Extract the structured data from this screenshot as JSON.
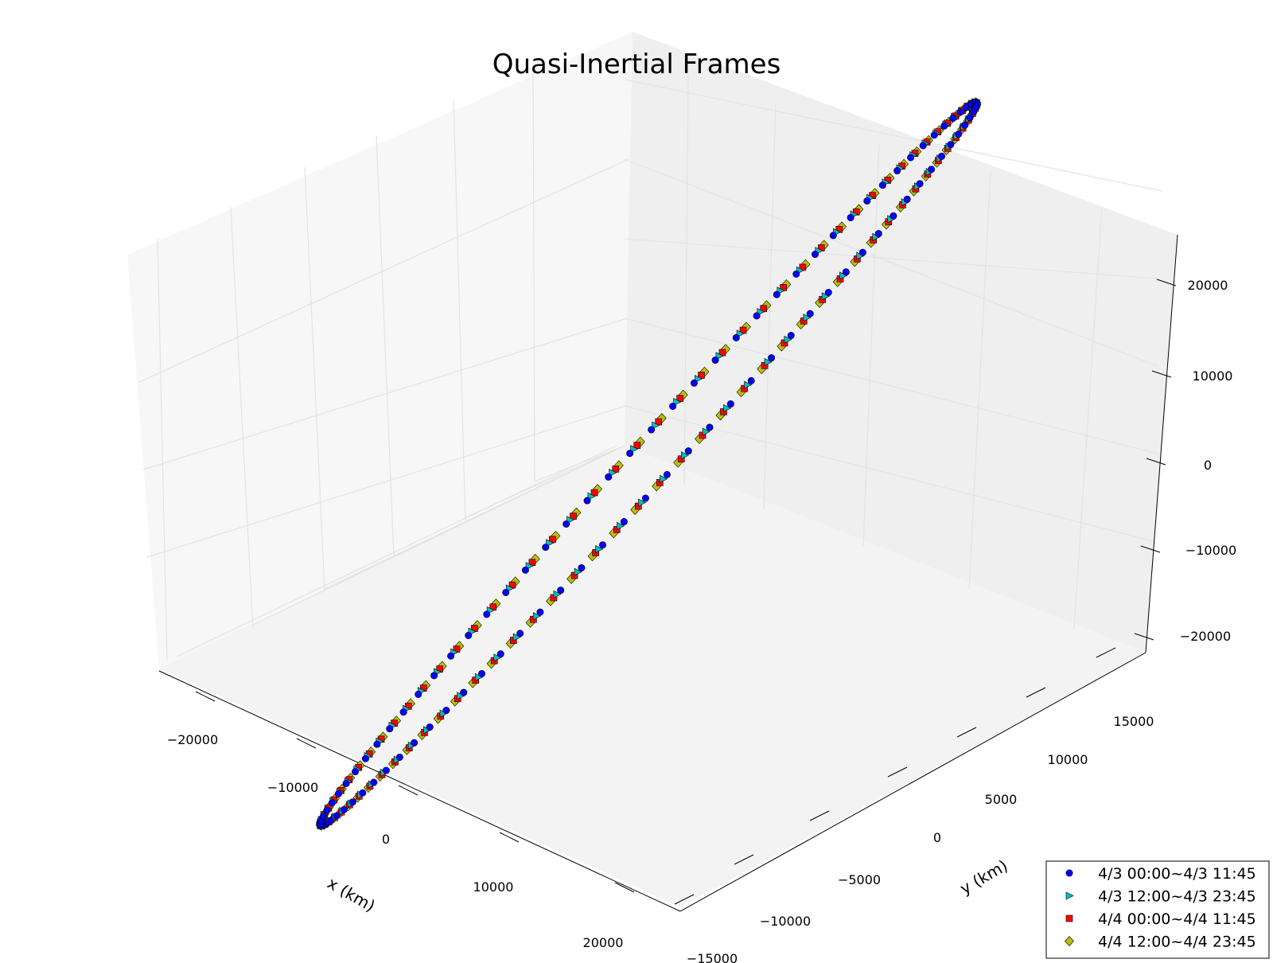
{
  "chart_data": {
    "type": "scatter",
    "projection": "3d",
    "title": "Quasi-Inertial Frames",
    "xlabel": "x (km)",
    "ylabel": "y (km)",
    "zlabel": "",
    "x_ticks": [
      "−20000",
      "−10000",
      "0",
      "10000",
      "20000"
    ],
    "y_ticks": [
      "−15000",
      "−10000",
      "−5000",
      "0",
      "5000",
      "10000",
      "15000"
    ],
    "z_ticks": [
      "−20000",
      "−10000",
      "0",
      "10000",
      "20000"
    ],
    "xlim": [
      -25000,
      25000
    ],
    "ylim": [
      -15000,
      15000
    ],
    "zlim": [
      -25000,
      25000
    ],
    "grid": true,
    "legend_position": "bottom-right",
    "orbit": {
      "description": "elliptical orbit sampled every 15 minutes",
      "approx_center": [
        0,
        3000,
        0
      ],
      "approx_semi_axis_km": 25000
    },
    "series": [
      {
        "name": "4/3 00:00~4/3 11:45",
        "marker": "circle",
        "color": "#0000ff"
      },
      {
        "name": "4/3 12:00~4/3 23:45",
        "marker": "triangle-right",
        "color": "#00bfbf"
      },
      {
        "name": "4/4 00:00~4/4 11:45",
        "marker": "square",
        "color": "#ff0000"
      },
      {
        "name": "4/4 12:00~4/4 23:45",
        "marker": "diamond",
        "color": "#bfbf00"
      }
    ]
  }
}
